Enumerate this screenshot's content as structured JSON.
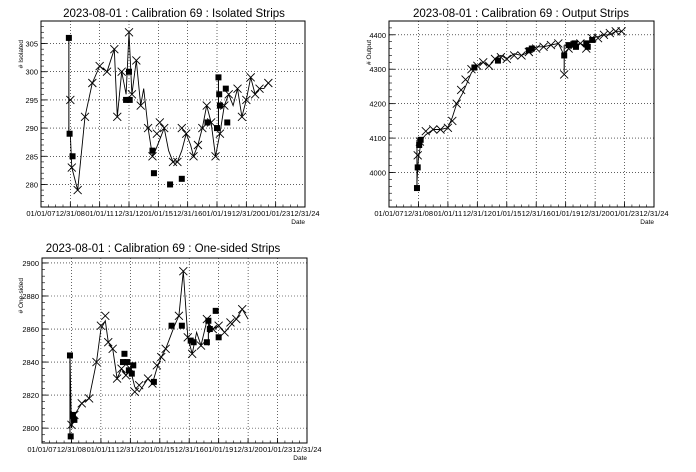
{
  "chart_data": [
    {
      "type": "scatter",
      "title": "2023-08-01 : Calibration 69 : Isolated Strips",
      "xlabel": "Date",
      "ylabel": "# Isolated",
      "x_tick_labels": [
        "01/01/07",
        "12/31/08",
        "01/01/11",
        "12/31/12",
        "01/01/15",
        "12/31/16",
        "01/01/19",
        "12/31/20",
        "01/01/23",
        "12/31/24"
      ],
      "xlim": [
        2007.0,
        2025.0
      ],
      "y_ticks": [
        280,
        285,
        290,
        295,
        300,
        305
      ],
      "ylim": [
        276,
        309
      ],
      "grid": true,
      "line": [
        [
          2009.0,
          289
        ],
        [
          2009.1,
          283
        ],
        [
          2009.5,
          279
        ],
        [
          2010.0,
          292
        ],
        [
          2010.5,
          298
        ],
        [
          2011.0,
          301
        ],
        [
          2011.5,
          300
        ],
        [
          2012.0,
          304
        ],
        [
          2012.2,
          292
        ],
        [
          2012.5,
          300
        ],
        [
          2012.8,
          296
        ],
        [
          2013.0,
          307
        ],
        [
          2013.2,
          296
        ],
        [
          2013.5,
          302
        ],
        [
          2013.8,
          294
        ],
        [
          2014.0,
          297
        ],
        [
          2014.3,
          290
        ],
        [
          2014.6,
          285
        ],
        [
          2014.8,
          286
        ],
        [
          2015.1,
          288
        ],
        [
          2015.4,
          290
        ],
        [
          2015.7,
          286
        ],
        [
          2016.0,
          284
        ],
        [
          2016.3,
          284
        ],
        [
          2016.6,
          286
        ],
        [
          2016.9,
          289
        ],
        [
          2017.2,
          287
        ],
        [
          2017.4,
          285
        ],
        [
          2017.7,
          287
        ],
        [
          2018.0,
          290
        ],
        [
          2018.3,
          294
        ],
        [
          2018.6,
          291
        ],
        [
          2018.9,
          285
        ],
        [
          2019.2,
          289
        ],
        [
          2019.5,
          294
        ],
        [
          2019.8,
          296
        ],
        [
          2020.1,
          294
        ],
        [
          2020.4,
          297
        ],
        [
          2020.7,
          292
        ],
        [
          2021.0,
          295
        ],
        [
          2021.3,
          299
        ],
        [
          2021.6,
          296
        ],
        [
          2021.9,
          297
        ],
        [
          2022.2,
          297
        ],
        [
          2022.5,
          298
        ]
      ],
      "crosses": [
        [
          2009.0,
          295
        ],
        [
          2009.1,
          283
        ],
        [
          2009.5,
          279
        ],
        [
          2010.0,
          292
        ],
        [
          2010.5,
          298
        ],
        [
          2011.0,
          301
        ],
        [
          2011.5,
          300
        ],
        [
          2012.0,
          304
        ],
        [
          2012.2,
          292
        ],
        [
          2012.5,
          300
        ],
        [
          2013.0,
          307
        ],
        [
          2013.2,
          296
        ],
        [
          2013.5,
          302
        ],
        [
          2013.8,
          294
        ],
        [
          2014.3,
          290
        ],
        [
          2014.6,
          285
        ],
        [
          2014.9,
          289
        ],
        [
          2015.1,
          291
        ],
        [
          2015.4,
          290
        ],
        [
          2016.0,
          284
        ],
        [
          2016.3,
          284
        ],
        [
          2016.6,
          290
        ],
        [
          2016.9,
          289
        ],
        [
          2017.4,
          285
        ],
        [
          2017.7,
          287
        ],
        [
          2018.0,
          290
        ],
        [
          2018.3,
          294
        ],
        [
          2018.6,
          291
        ],
        [
          2018.9,
          285
        ],
        [
          2019.2,
          289
        ],
        [
          2019.5,
          294
        ],
        [
          2019.8,
          296
        ],
        [
          2020.4,
          297
        ],
        [
          2020.7,
          292
        ],
        [
          2021.0,
          295
        ],
        [
          2021.3,
          299
        ],
        [
          2021.6,
          296
        ],
        [
          2021.9,
          297
        ],
        [
          2022.5,
          298
        ]
      ],
      "squares": [
        [
          2008.9,
          306
        ],
        [
          2008.95,
          289
        ],
        [
          2009.15,
          285
        ],
        [
          2012.8,
          295
        ],
        [
          2013.0,
          300
        ],
        [
          2013.05,
          295
        ],
        [
          2014.6,
          286
        ],
        [
          2014.7,
          282
        ],
        [
          2015.8,
          280
        ],
        [
          2016.6,
          281
        ],
        [
          2018.35,
          291
        ],
        [
          2019.0,
          290
        ],
        [
          2019.1,
          299
        ],
        [
          2019.15,
          296
        ],
        [
          2019.2,
          294
        ],
        [
          2019.6,
          297
        ],
        [
          2019.7,
          291
        ]
      ],
      "error_bars": [
        [
          2008.9,
          289,
          306
        ],
        [
          2019.1,
          290,
          299
        ]
      ]
    },
    {
      "type": "scatter",
      "title": "2023-08-01 : Calibration 69 : Output Strips",
      "xlabel": "Date",
      "ylabel": "# Output",
      "x_tick_labels": [
        "01/01/07",
        "12/31/08",
        "01/01/11",
        "12/31/12",
        "01/01/15",
        "12/31/16",
        "01/01/19",
        "12/31/20",
        "01/01/23",
        "12/31/24"
      ],
      "xlim": [
        2007.0,
        2025.0
      ],
      "y_ticks": [
        4000,
        4100,
        4200,
        4300,
        4400
      ],
      "y_tick_labels": [
        "4000",
        "4100",
        "4200",
        "4300",
        "4400"
      ],
      "ylim": [
        3900,
        4440
      ],
      "grid": true,
      "line": [
        [
          2008.9,
          3975
        ],
        [
          2009.0,
          4040
        ],
        [
          2009.2,
          4095
        ],
        [
          2009.5,
          4110
        ],
        [
          2010.0,
          4125
        ],
        [
          2010.5,
          4125
        ],
        [
          2011.0,
          4130
        ],
        [
          2011.3,
          4160
        ],
        [
          2011.6,
          4200
        ],
        [
          2012.0,
          4230
        ],
        [
          2012.3,
          4260
        ],
        [
          2012.6,
          4290
        ],
        [
          2013.0,
          4310
        ],
        [
          2013.4,
          4320
        ],
        [
          2013.8,
          4310
        ],
        [
          2014.2,
          4330
        ],
        [
          2014.6,
          4340
        ],
        [
          2015.0,
          4330
        ],
        [
          2015.5,
          4345
        ],
        [
          2016.0,
          4340
        ],
        [
          2016.5,
          4350
        ],
        [
          2017.0,
          4365
        ],
        [
          2017.5,
          4365
        ],
        [
          2018.0,
          4370
        ],
        [
          2018.5,
          4375
        ],
        [
          2018.9,
          4340
        ],
        [
          2019.2,
          4360
        ],
        [
          2019.6,
          4370
        ],
        [
          2020.0,
          4375
        ],
        [
          2020.4,
          4365
        ],
        [
          2020.8,
          4390
        ],
        [
          2021.2,
          4395
        ],
        [
          2021.6,
          4400
        ],
        [
          2022.0,
          4400
        ],
        [
          2022.4,
          4410
        ],
        [
          2022.8,
          4410
        ]
      ],
      "crosses": [
        [
          2008.95,
          4050
        ],
        [
          2009.1,
          4090
        ],
        [
          2009.5,
          4120
        ],
        [
          2010.0,
          4125
        ],
        [
          2010.5,
          4125
        ],
        [
          2011.0,
          4130
        ],
        [
          2011.3,
          4150
        ],
        [
          2011.6,
          4200
        ],
        [
          2011.9,
          4240
        ],
        [
          2012.2,
          4270
        ],
        [
          2012.6,
          4300
        ],
        [
          2013.0,
          4310
        ],
        [
          2013.4,
          4320
        ],
        [
          2013.8,
          4310
        ],
        [
          2014.2,
          4330
        ],
        [
          2014.6,
          4335
        ],
        [
          2015.0,
          4330
        ],
        [
          2015.5,
          4340
        ],
        [
          2016.0,
          4340
        ],
        [
          2016.5,
          4350
        ],
        [
          2017.0,
          4360
        ],
        [
          2017.5,
          4365
        ],
        [
          2018.0,
          4370
        ],
        [
          2018.5,
          4375
        ],
        [
          2018.9,
          4285
        ],
        [
          2019.2,
          4360
        ],
        [
          2019.6,
          4370
        ],
        [
          2020.0,
          4375
        ],
        [
          2020.4,
          4360
        ],
        [
          2020.8,
          4390
        ],
        [
          2021.2,
          4390
        ],
        [
          2021.6,
          4400
        ],
        [
          2022.0,
          4405
        ],
        [
          2022.4,
          4410
        ],
        [
          2022.8,
          4410
        ]
      ],
      "squares": [
        [
          2008.9,
          3955
        ],
        [
          2008.95,
          4015
        ],
        [
          2009.05,
          4080
        ],
        [
          2009.15,
          4095
        ],
        [
          2012.8,
          4305
        ],
        [
          2014.4,
          4325
        ],
        [
          2016.5,
          4355
        ],
        [
          2016.7,
          4360
        ],
        [
          2018.9,
          4340
        ],
        [
          2019.2,
          4370
        ],
        [
          2019.6,
          4375
        ],
        [
          2019.7,
          4365
        ],
        [
          2020.4,
          4375
        ],
        [
          2020.5,
          4365
        ],
        [
          2020.8,
          4385
        ]
      ],
      "error_bars": [
        [
          2008.9,
          3955,
          4095
        ],
        [
          2018.9,
          4290,
          4370
        ]
      ]
    },
    {
      "type": "scatter",
      "title": "2023-08-01 : Calibration 69 : One-sided Strips",
      "xlabel": "Date",
      "ylabel": "# One-sided",
      "x_tick_labels": [
        "01/01/07",
        "12/31/08",
        "01/01/11",
        "12/31/12",
        "01/01/15",
        "12/31/16",
        "01/01/19",
        "12/31/20",
        "01/01/23",
        "12/31/24"
      ],
      "xlim": [
        2007.0,
        2025.0
      ],
      "y_ticks": [
        2800,
        2820,
        2840,
        2860,
        2880,
        2900
      ],
      "ylim": [
        2791,
        2903
      ],
      "grid": true,
      "line": [
        [
          2008.9,
          2844
        ],
        [
          2009.0,
          2800
        ],
        [
          2009.2,
          2808
        ],
        [
          2009.7,
          2815
        ],
        [
          2010.2,
          2818
        ],
        [
          2010.7,
          2840
        ],
        [
          2011.0,
          2860
        ],
        [
          2011.3,
          2865
        ],
        [
          2011.5,
          2852
        ],
        [
          2011.8,
          2848
        ],
        [
          2012.1,
          2830
        ],
        [
          2012.4,
          2836
        ],
        [
          2012.7,
          2832
        ],
        [
          2013.0,
          2836
        ],
        [
          2013.3,
          2825
        ],
        [
          2013.6,
          2822
        ],
        [
          2013.9,
          2826
        ],
        [
          2014.2,
          2830
        ],
        [
          2014.5,
          2827
        ],
        [
          2014.8,
          2836
        ],
        [
          2015.1,
          2843
        ],
        [
          2015.4,
          2848
        ],
        [
          2015.7,
          2855
        ],
        [
          2016.0,
          2862
        ],
        [
          2016.3,
          2868
        ],
        [
          2016.6,
          2895
        ],
        [
          2016.9,
          2855
        ],
        [
          2017.2,
          2845
        ],
        [
          2017.5,
          2858
        ],
        [
          2017.8,
          2850
        ],
        [
          2018.2,
          2865
        ],
        [
          2018.6,
          2860
        ],
        [
          2019.0,
          2862
        ],
        [
          2019.4,
          2858
        ],
        [
          2019.8,
          2862
        ],
        [
          2020.2,
          2866
        ],
        [
          2020.6,
          2872
        ],
        [
          2021.0,
          2866
        ]
      ],
      "crosses": [
        [
          2009.0,
          2802
        ],
        [
          2009.2,
          2808
        ],
        [
          2009.7,
          2815
        ],
        [
          2010.2,
          2818
        ],
        [
          2010.7,
          2840
        ],
        [
          2011.0,
          2862
        ],
        [
          2011.3,
          2868
        ],
        [
          2011.5,
          2852
        ],
        [
          2011.8,
          2848
        ],
        [
          2012.1,
          2830
        ],
        [
          2012.4,
          2836
        ],
        [
          2012.7,
          2832
        ],
        [
          2013.0,
          2836
        ],
        [
          2013.3,
          2822
        ],
        [
          2013.6,
          2826
        ],
        [
          2014.2,
          2830
        ],
        [
          2014.5,
          2827
        ],
        [
          2014.8,
          2838
        ],
        [
          2015.1,
          2843
        ],
        [
          2015.4,
          2848
        ],
        [
          2016.3,
          2868
        ],
        [
          2016.6,
          2895
        ],
        [
          2016.9,
          2855
        ],
        [
          2017.2,
          2845
        ],
        [
          2017.8,
          2850
        ],
        [
          2018.2,
          2866
        ],
        [
          2018.6,
          2860
        ],
        [
          2019.0,
          2862
        ],
        [
          2019.4,
          2858
        ],
        [
          2019.8,
          2864
        ],
        [
          2020.2,
          2866
        ],
        [
          2020.6,
          2872
        ]
      ],
      "squares": [
        [
          2008.9,
          2844
        ],
        [
          2008.95,
          2795
        ],
        [
          2009.1,
          2808
        ],
        [
          2009.2,
          2805
        ],
        [
          2012.5,
          2840
        ],
        [
          2012.6,
          2845
        ],
        [
          2012.8,
          2840
        ],
        [
          2012.9,
          2835
        ],
        [
          2013.1,
          2833
        ],
        [
          2013.2,
          2838
        ],
        [
          2014.6,
          2828
        ],
        [
          2015.8,
          2862
        ],
        [
          2016.5,
          2862
        ],
        [
          2017.1,
          2853
        ],
        [
          2017.3,
          2852
        ],
        [
          2018.2,
          2852
        ],
        [
          2018.3,
          2865
        ],
        [
          2018.4,
          2860
        ],
        [
          2018.8,
          2871
        ],
        [
          2019.0,
          2855
        ]
      ],
      "error_bars": [
        [
          2008.9,
          2795,
          2844
        ],
        [
          2018.3,
          2850,
          2866
        ]
      ]
    }
  ]
}
